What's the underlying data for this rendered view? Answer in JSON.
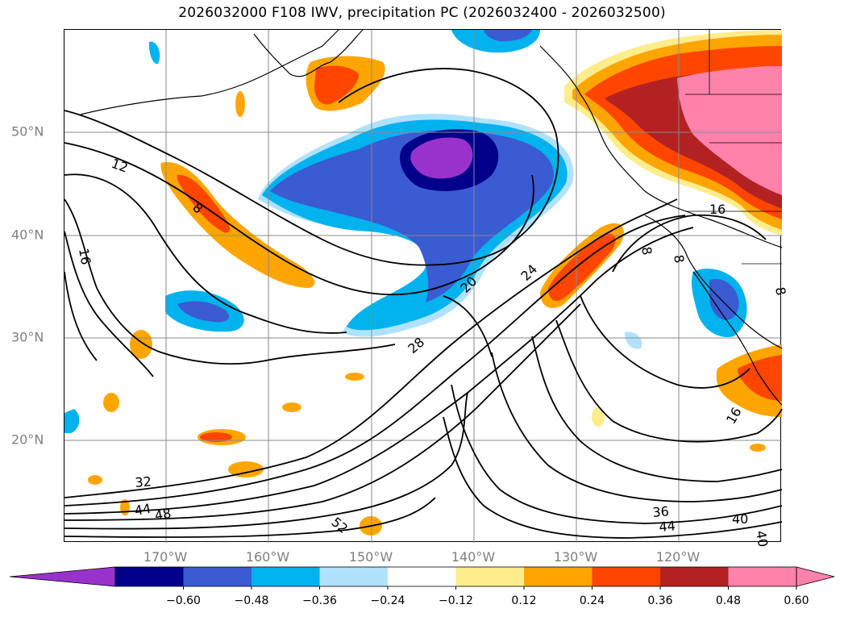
{
  "title": "2026032000 F108 IWV, precipitation PC (2026032400 - 2026032500)",
  "axes": {
    "lat_ticks": [
      "50°N",
      "40°N",
      "30°N",
      "20°N"
    ],
    "lon_ticks": [
      "170°W",
      "160°W",
      "150°W",
      "140°W",
      "130°W",
      "120°W"
    ]
  },
  "contour_labels": [
    "12",
    "8",
    "16",
    "20",
    "24",
    "28",
    "32",
    "44",
    "48",
    "52",
    "36",
    "44",
    "40",
    "40",
    "16",
    "16",
    "8",
    "8",
    "8"
  ],
  "colorbar": {
    "ticks": [
      "−0.60",
      "−0.48",
      "−0.36",
      "−0.24",
      "−0.12",
      "0.12",
      "0.24",
      "0.36",
      "0.48",
      "0.60"
    ],
    "colors": [
      "#9932cc",
      "#00008b",
      "#3a5bd1",
      "#00b2ee",
      "#b0e2ff",
      "#ffffff",
      "#ffec8b",
      "#ffa500",
      "#ff4500",
      "#b22222",
      "#ff82ab",
      "#ff82ab"
    ]
  },
  "palette": {
    "purple": "#9932cc",
    "navy": "#00008b",
    "royal": "#3a5bd1",
    "sky": "#00b2ee",
    "pale": "#b0e2ff",
    "yellow": "#ffec8b",
    "orange": "#ffa500",
    "red": "#ff4500",
    "brick": "#b22222",
    "pink": "#ff82ab",
    "grey_text": "#7f7f7f"
  }
}
